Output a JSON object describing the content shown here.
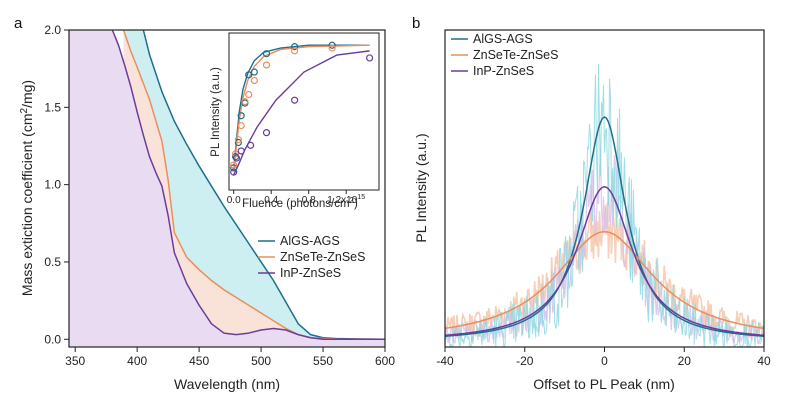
{
  "colors": {
    "aigs": "#1f6e8c",
    "aigs_fill": "#cdeff2",
    "znsete": "#e98e5f",
    "znsete_fill": "#f9e3d8",
    "inp": "#6a3d9a",
    "inp_fill": "#e9dcf2",
    "noise_aigs": "#8fd8e0",
    "noise_znsete": "#f6c6a9",
    "noise_inp": "#d7c2ea"
  },
  "chart_data": [
    {
      "panel_label": "a",
      "type": "line",
      "xlabel": "Wavelength (nm)",
      "ylabel_main": "Mass extiction coefficient (cm",
      "ylabel_sup": "2",
      "ylabel_end": "/mg)",
      "xlim": [
        345,
        600
      ],
      "ylim": [
        -0.05,
        2.0
      ],
      "xticks": [
        350,
        400,
        450,
        500,
        550,
        600
      ],
      "xtick_labels": [
        "350",
        "400",
        "450",
        "500",
        "550",
        "600"
      ],
      "yticks": [
        0.0,
        0.5,
        1.0,
        1.5,
        2.0
      ],
      "ytick_labels": [
        "0.0",
        "0.5",
        "1.0",
        "1.5",
        "2.0"
      ],
      "legend_position": "lower-right",
      "series": [
        {
          "name": "AlGS-AGS",
          "key": "aigs",
          "x": [
            405,
            410,
            420,
            430,
            440,
            450,
            460,
            470,
            480,
            490,
            500,
            510,
            520,
            530,
            540,
            550,
            560,
            570,
            580,
            590,
            600
          ],
          "y": [
            2.0,
            1.84,
            1.6,
            1.41,
            1.26,
            1.12,
            0.99,
            0.86,
            0.74,
            0.62,
            0.5,
            0.38,
            0.24,
            0.1,
            0.03,
            0.01,
            0.005,
            0.003,
            0.002,
            0.001,
            0.0
          ]
        },
        {
          "name": "ZnSeTe-ZnSeS",
          "key": "znsete",
          "x": [
            389,
            395,
            400,
            410,
            420,
            425,
            430,
            440,
            450,
            460,
            470,
            480,
            490,
            500,
            510,
            520,
            530,
            540,
            550,
            560,
            580,
            600
          ],
          "y": [
            2.0,
            1.86,
            1.76,
            1.55,
            1.28,
            1.03,
            0.69,
            0.53,
            0.45,
            0.38,
            0.32,
            0.27,
            0.22,
            0.17,
            0.12,
            0.07,
            0.03,
            0.01,
            0.005,
            0.002,
            0.001,
            0.0
          ]
        },
        {
          "name": "InP-ZnSeS",
          "key": "inp",
          "x": [
            380,
            385,
            390,
            395,
            400,
            405,
            410,
            415,
            420,
            425,
            430,
            440,
            450,
            460,
            470,
            480,
            490,
            500,
            510,
            520,
            530,
            540,
            550,
            560,
            580,
            600
          ],
          "y": [
            2.0,
            1.9,
            1.77,
            1.63,
            1.47,
            1.32,
            1.18,
            1.08,
            0.99,
            0.8,
            0.56,
            0.36,
            0.22,
            0.1,
            0.04,
            0.03,
            0.04,
            0.06,
            0.07,
            0.06,
            0.03,
            0.01,
            0.0,
            0.0,
            0.0,
            0.0
          ]
        }
      ],
      "inset": {
        "type": "scatter",
        "xlabel": "Fluence (photons/cm",
        "xlabel_sup": "2",
        "xlabel_end": ")",
        "ylabel": "PL Intensity (a.u.)",
        "xlim": [
          -0.05,
          1.55
        ],
        "xticks": [
          0.0,
          0.4,
          0.8,
          1.2
        ],
        "xtick_labels": [
          "0.0",
          "0.4",
          "0.8",
          "1.2x10"
        ],
        "xtick_exponent": "15",
        "series": [
          {
            "name": "AlGS-AGS",
            "key": "aigs",
            "x": [
              0.0,
              0.02,
              0.05,
              0.08,
              0.12,
              0.16,
              0.22,
              0.35,
              0.65,
              1.05
            ],
            "y": [
              0.1,
              0.18,
              0.28,
              0.47,
              0.56,
              0.76,
              0.78,
              0.91,
              0.96,
              0.97
            ],
            "fit_y": [
              0.08,
              0.3,
              0.5,
              0.66,
              0.77,
              0.86,
              0.92,
              0.95,
              0.97,
              0.97
            ]
          },
          {
            "name": "ZnSeTe-ZnSeS",
            "key": "znsete",
            "x": [
              0.0,
              0.02,
              0.05,
              0.08,
              0.12,
              0.16,
              0.22,
              0.35,
              0.65,
              1.05
            ],
            "y": [
              0.12,
              0.2,
              0.3,
              0.4,
              0.57,
              0.62,
              0.72,
              0.83,
              0.93,
              0.95
            ],
            "fit_y": [
              0.08,
              0.26,
              0.44,
              0.6,
              0.72,
              0.82,
              0.89,
              0.94,
              0.96,
              0.97
            ]
          },
          {
            "name": "InP-ZnSeS",
            "key": "inp",
            "x": [
              0.0,
              0.03,
              0.08,
              0.18,
              0.35,
              0.65,
              1.45
            ],
            "y": [
              0.07,
              0.17,
              0.22,
              0.26,
              0.35,
              0.58,
              0.88
            ],
            "fit_y": [
              0.05,
              0.12,
              0.23,
              0.39,
              0.58,
              0.78,
              0.9
            ]
          }
        ]
      }
    },
    {
      "panel_label": "b",
      "type": "line",
      "xlabel": "Offset to PL Peak (nm)",
      "ylabel": "PL Intensity (a.u.)",
      "xlim": [
        -40,
        40
      ],
      "xticks": [
        -40,
        -20,
        0,
        20,
        40
      ],
      "xtick_labels": [
        "-40",
        "-20",
        "0",
        "20",
        "40"
      ],
      "legend_position": "top-left",
      "series": [
        {
          "name": "AlGS-AGS",
          "key": "aigs",
          "peak": 1.0,
          "gamma": 6.5
        },
        {
          "name": "ZnSeTe-ZnSeS",
          "key": "znsete",
          "peak": 0.49,
          "gamma": 15.0
        },
        {
          "name": "InP-ZnSeS",
          "key": "inp",
          "peak": 0.69,
          "gamma": 8.5
        }
      ]
    }
  ]
}
